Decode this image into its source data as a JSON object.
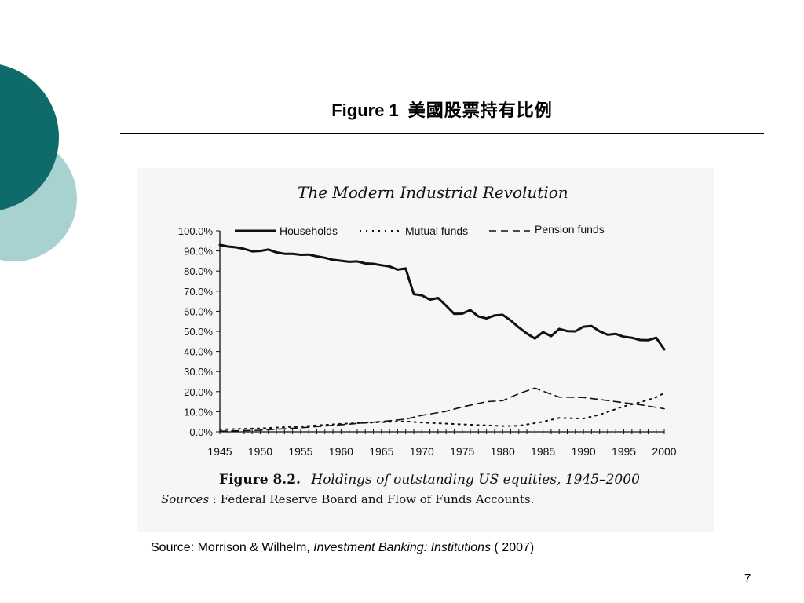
{
  "slide": {
    "title_en": "Figure 1",
    "title_zh": "美國股票持有比例",
    "source_prefix": "Source: Morrison & Wilhelm, ",
    "source_book": "Investment Banking: Institutions",
    "source_suffix": " ( 2007)",
    "page_number": "7"
  },
  "colors": {
    "accent_dark": "#0f6a6a",
    "accent_light": "#a8d2d0",
    "figure_background": "#f6f6f6",
    "ink": "#111111"
  },
  "chart_data": {
    "type": "line",
    "title": "The Modern Industrial Revolution",
    "caption_label": "Figure 8.2.",
    "caption_text": "Holdings of outstanding US equities, 1945–2000",
    "sources_label": "Sources",
    "sources_text": ": Federal Reserve Board and Flow of Funds Accounts.",
    "xlabel": "",
    "ylabel": "",
    "xlim": [
      1945,
      2000
    ],
    "ylim": [
      0,
      100
    ],
    "x_ticks": [
      "1945",
      "1950",
      "1955",
      "1960",
      "1965",
      "1970",
      "1975",
      "1980",
      "1985",
      "1990",
      "1995",
      "2000"
    ],
    "y_ticks": [
      "0.0%",
      "10.0%",
      "20.0%",
      "30.0%",
      "40.0%",
      "50.0%",
      "60.0%",
      "70.0%",
      "80.0%",
      "90.0%",
      "100.0%"
    ],
    "legend_position": "top",
    "grid": false,
    "series": [
      {
        "name": "Households",
        "style": "solid",
        "points": [
          [
            1945,
            93.0
          ],
          [
            1946,
            92.2
          ],
          [
            1947,
            91.8
          ],
          [
            1948,
            91.0
          ],
          [
            1949,
            89.8
          ],
          [
            1950,
            90.0
          ],
          [
            1951,
            90.7
          ],
          [
            1952,
            89.3
          ],
          [
            1953,
            88.6
          ],
          [
            1954,
            88.6
          ],
          [
            1955,
            88.1
          ],
          [
            1956,
            88.2
          ],
          [
            1957,
            87.3
          ],
          [
            1958,
            86.6
          ],
          [
            1959,
            85.6
          ],
          [
            1960,
            85.1
          ],
          [
            1961,
            84.6
          ],
          [
            1962,
            84.8
          ],
          [
            1963,
            83.8
          ],
          [
            1964,
            83.6
          ],
          [
            1965,
            82.9
          ],
          [
            1966,
            82.3
          ],
          [
            1967,
            80.7
          ],
          [
            1968,
            81.3
          ],
          [
            1969,
            68.5
          ],
          [
            1970,
            67.9
          ],
          [
            1971,
            65.8
          ],
          [
            1972,
            66.6
          ],
          [
            1973,
            62.8
          ],
          [
            1974,
            58.7
          ],
          [
            1975,
            58.8
          ],
          [
            1976,
            60.6
          ],
          [
            1977,
            57.4
          ],
          [
            1978,
            56.4
          ],
          [
            1979,
            57.9
          ],
          [
            1980,
            58.2
          ],
          [
            1981,
            55.4
          ],
          [
            1982,
            51.9
          ],
          [
            1983,
            48.9
          ],
          [
            1984,
            46.4
          ],
          [
            1985,
            49.6
          ],
          [
            1986,
            47.6
          ],
          [
            1987,
            51.2
          ],
          [
            1988,
            50.1
          ],
          [
            1989,
            50.0
          ],
          [
            1990,
            52.3
          ],
          [
            1991,
            52.6
          ],
          [
            1992,
            50.0
          ],
          [
            1993,
            48.3
          ],
          [
            1994,
            48.7
          ],
          [
            1995,
            47.3
          ],
          [
            1996,
            46.8
          ],
          [
            1997,
            45.7
          ],
          [
            1998,
            45.6
          ],
          [
            1999,
            46.8
          ],
          [
            2000,
            41.0
          ]
        ]
      },
      {
        "name": "Mutual funds",
        "style": "dotted",
        "points": [
          [
            1945,
            1.2
          ],
          [
            1950,
            1.7
          ],
          [
            1955,
            2.7
          ],
          [
            1960,
            4.0
          ],
          [
            1965,
            4.8
          ],
          [
            1968,
            5.2
          ],
          [
            1970,
            4.6
          ],
          [
            1975,
            3.7
          ],
          [
            1980,
            2.9
          ],
          [
            1982,
            3.0
          ],
          [
            1985,
            5.0
          ],
          [
            1987,
            6.9
          ],
          [
            1990,
            6.6
          ],
          [
            1992,
            8.5
          ],
          [
            1995,
            12.7
          ],
          [
            1997,
            14.7
          ],
          [
            1999,
            17.2
          ],
          [
            2000,
            19.3
          ]
        ]
      },
      {
        "name": "Pension funds",
        "style": "dashed",
        "points": [
          [
            1945,
            0.3
          ],
          [
            1950,
            0.8
          ],
          [
            1955,
            2.0
          ],
          [
            1960,
            3.5
          ],
          [
            1965,
            5.1
          ],
          [
            1968,
            6.3
          ],
          [
            1970,
            8.2
          ],
          [
            1973,
            10.2
          ],
          [
            1975,
            12.4
          ],
          [
            1978,
            15.0
          ],
          [
            1980,
            15.5
          ],
          [
            1982,
            19.0
          ],
          [
            1984,
            21.8
          ],
          [
            1985,
            20.2
          ],
          [
            1987,
            17.3
          ],
          [
            1990,
            17.1
          ],
          [
            1992,
            16.1
          ],
          [
            1995,
            14.5
          ],
          [
            1997,
            13.5
          ],
          [
            2000,
            11.5
          ]
        ]
      }
    ]
  }
}
